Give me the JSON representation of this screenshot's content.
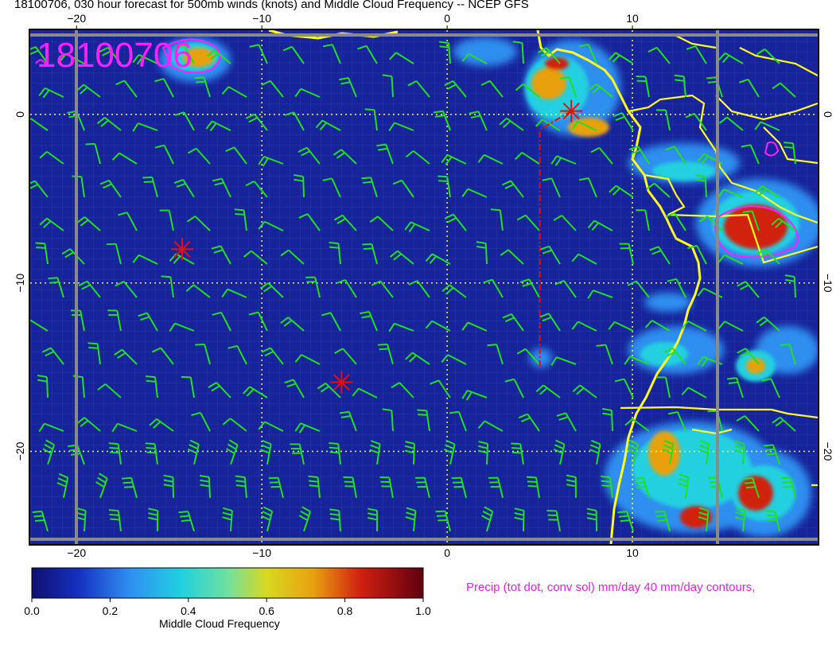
{
  "title": "18100706, 030 hour forecast for 500mb winds (knots) and Middle Cloud Frequency -- NCEP GFS",
  "stamp": "18100706",
  "precip_label": "Precip (tot dot, conv sol) mm/day 40 mm/day contours,",
  "colorbar": {
    "title": "Middle Cloud Frequency",
    "ticks": [
      "0.0",
      "0.2",
      "0.4",
      "0.6",
      "0.8",
      "1.0"
    ],
    "min": 0.0,
    "max": 1.0
  },
  "axes": {
    "xlim": [
      -22.5,
      20
    ],
    "ylim": [
      -25.5,
      5
    ],
    "x_ticks": [
      -20,
      -10,
      0,
      10
    ],
    "y_ticks": [
      0,
      -10,
      -20
    ],
    "x_tick_labels": [
      "−20",
      "−10",
      "0",
      "10"
    ],
    "y_tick_labels_left": [
      "0",
      "−10",
      "−20"
    ],
    "y_tick_labels_right": [
      "0",
      "−10",
      "−20"
    ]
  },
  "colors": {
    "ocean": "#16239a",
    "coast": "#ffff20",
    "barbs": "#20e020",
    "precip": "#ff20ff",
    "track": "#e01010"
  },
  "storm_markers": [
    {
      "lon": -14.3,
      "lat": -8.0
    },
    {
      "lon": -5.7,
      "lat": -15.9
    },
    {
      "lon": 6.7,
      "lat": 0.2
    }
  ],
  "track": [
    [
      6.7,
      0.2
    ],
    [
      5.0,
      -0.9
    ],
    [
      5.0,
      -15.0
    ]
  ]
}
